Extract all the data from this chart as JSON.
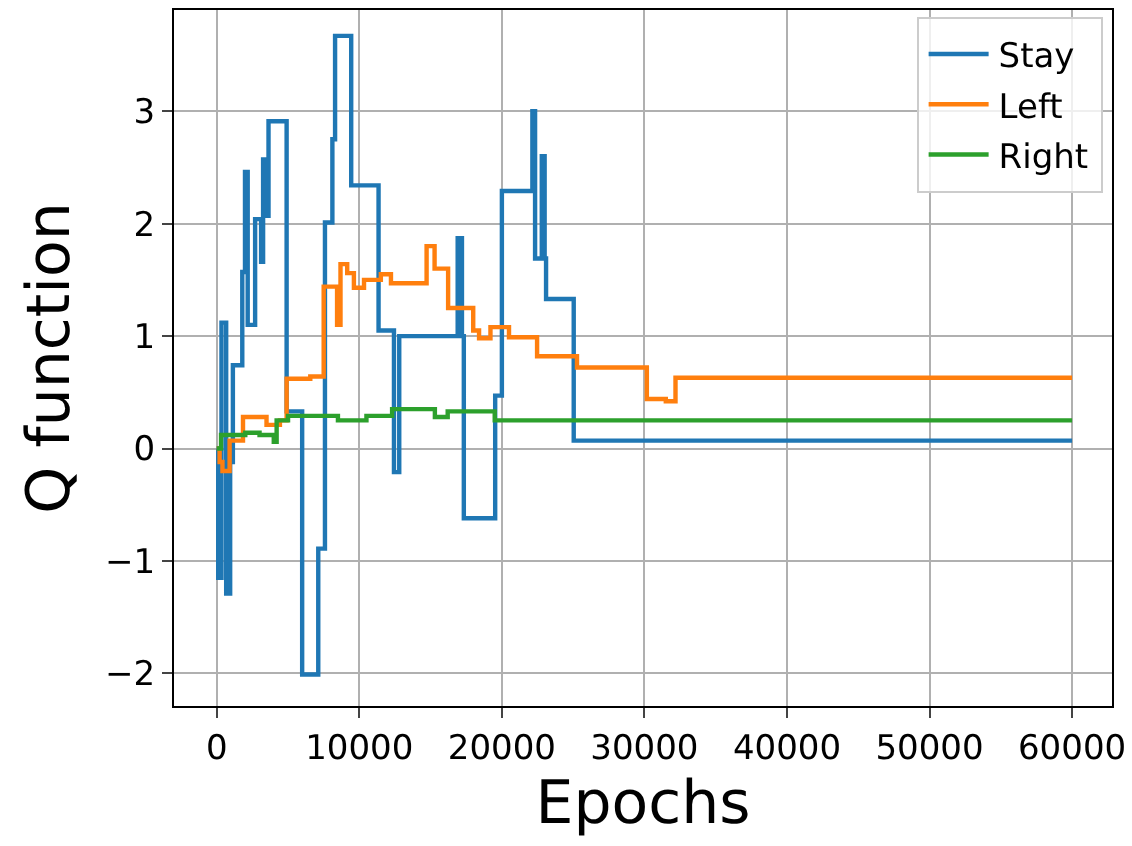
{
  "chart_data": {
    "type": "step",
    "xlabel": "Epochs",
    "ylabel": "Q function",
    "xlim": [
      -3000,
      62800
    ],
    "ylim": [
      -2.29,
      3.9
    ],
    "xticks": [
      0,
      10000,
      20000,
      30000,
      40000,
      50000,
      60000
    ],
    "yticks": [
      -2,
      -1,
      0,
      1,
      2,
      3
    ],
    "grid": true,
    "legend": "top right",
    "series": [
      {
        "name": "Stay",
        "color": "#1f77b4",
        "x": [
          0,
          100,
          330,
          660,
          940,
          1130,
          1790,
          1980,
          2170,
          2690,
          3110,
          3250,
          3490,
          3630,
          4900,
          5990,
          7120,
          7590,
          8110,
          8300,
          9430,
          11350,
          12430,
          12800,
          16900,
          17200,
          17330,
          19530,
          20000,
          22140,
          22330,
          22800,
          23000,
          23100,
          25040,
          60000
        ],
        "values": [
          0,
          -1.15,
          1.12,
          -1.29,
          -0.12,
          0.74,
          1.57,
          2.46,
          1.1,
          2.04,
          1.66,
          2.57,
          2.07,
          2.91,
          0.33,
          -2.01,
          -0.89,
          2.01,
          2.75,
          3.67,
          2.34,
          1.05,
          -0.21,
          1.0,
          1.87,
          1.0,
          -0.62,
          0.47,
          2.29,
          3.0,
          1.69,
          2.6,
          1.69,
          1.33,
          0.07,
          0.07
        ]
      },
      {
        "name": "Left",
        "color": "#ff7f0e",
        "x": [
          0,
          200,
          400,
          900,
          1840,
          3490,
          4430,
          4900,
          6560,
          7500,
          8440,
          8680,
          9150,
          9620,
          10330,
          11510,
          12220,
          14720,
          15280,
          16230,
          17990,
          18400,
          19200,
          20500,
          22470,
          25270,
          30170,
          31500,
          32180,
          60000
        ],
        "values": [
          0,
          -0.12,
          -0.2,
          0.07,
          0.28,
          0.21,
          0.25,
          0.62,
          0.64,
          1.44,
          1.1,
          1.64,
          1.56,
          1.43,
          1.5,
          1.55,
          1.47,
          1.8,
          1.6,
          1.25,
          1.05,
          0.98,
          1.08,
          0.99,
          0.82,
          0.72,
          0.44,
          0.42,
          0.63,
          0.63
        ]
      },
      {
        "name": "Right",
        "color": "#2ca02c",
        "x": [
          0,
          300,
          2000,
          3000,
          4000,
          4200,
          5000,
          8500,
          10500,
          12300,
          15300,
          16200,
          19500,
          60000
        ],
        "values": [
          0,
          0.12,
          0.14,
          0.12,
          0.06,
          0.25,
          0.29,
          0.25,
          0.29,
          0.35,
          0.28,
          0.33,
          0.25,
          0.25
        ]
      }
    ]
  }
}
